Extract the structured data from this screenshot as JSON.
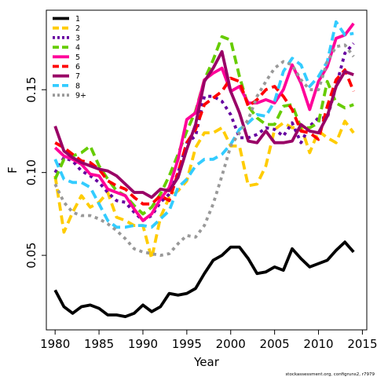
{
  "chart_data": {
    "type": "line",
    "title": "",
    "xlabel": "Year",
    "ylabel": "F",
    "xlim": [
      1979,
      2015.5
    ],
    "ylim": [
      0.005,
      0.198
    ],
    "xticks": [
      1980,
      1985,
      1990,
      1995,
      2000,
      2005,
      2010,
      2015
    ],
    "yticks": [
      0.05,
      0.1,
      0.15
    ],
    "ytick_labels": [
      "0.05",
      "0.10",
      "0.15"
    ],
    "grid": false,
    "legend_position": "top-left",
    "footnote": "stockassessment.org, configruns2, r7979",
    "x": [
      1980,
      1981,
      1982,
      1983,
      1984,
      1985,
      1986,
      1987,
      1988,
      1989,
      1990,
      1991,
      1992,
      1993,
      1994,
      1995,
      1996,
      1997,
      1998,
      1999,
      2000,
      2001,
      2002,
      2003,
      2004,
      2005,
      2006,
      2007,
      2008,
      2009,
      2010,
      2011,
      2012,
      2013,
      2014
    ],
    "series": [
      {
        "name": "1",
        "color": "#000000",
        "dash": "solid",
        "values": [
          0.029,
          0.019,
          0.015,
          0.019,
          0.02,
          0.018,
          0.014,
          0.014,
          0.013,
          0.015,
          0.02,
          0.016,
          0.019,
          0.027,
          0.026,
          0.027,
          0.03,
          0.039,
          0.047,
          0.05,
          0.055,
          0.055,
          0.048,
          0.039,
          0.04,
          0.043,
          0.041,
          0.054,
          0.048,
          0.043,
          0.045,
          0.047,
          0.053,
          0.058,
          0.052
        ]
      },
      {
        "name": "2",
        "color": "#FFCC00",
        "dash": "dashed",
        "values": [
          0.098,
          0.064,
          0.076,
          0.086,
          0.079,
          0.082,
          0.088,
          0.073,
          0.071,
          0.068,
          0.068,
          0.048,
          0.073,
          0.085,
          0.089,
          0.095,
          0.115,
          0.124,
          0.124,
          0.127,
          0.116,
          0.116,
          0.092,
          0.093,
          0.104,
          0.126,
          0.13,
          0.127,
          0.128,
          0.112,
          0.125,
          0.121,
          0.118,
          0.131,
          0.124
        ]
      },
      {
        "name": "3",
        "color": "#6600A0",
        "dash": "dotted",
        "values": [
          0.1,
          0.109,
          0.107,
          0.101,
          0.098,
          0.094,
          0.088,
          0.083,
          0.082,
          0.076,
          0.071,
          0.074,
          0.082,
          0.087,
          0.1,
          0.118,
          0.122,
          0.146,
          0.146,
          0.143,
          0.135,
          0.121,
          0.121,
          0.123,
          0.127,
          0.126,
          0.122,
          0.13,
          0.118,
          0.128,
          0.133,
          0.133,
          0.152,
          0.172,
          0.178
        ]
      },
      {
        "name": "4",
        "color": "#66CC00",
        "dash": "dashed",
        "values": [
          0.096,
          0.108,
          0.11,
          0.112,
          0.116,
          0.104,
          0.096,
          0.089,
          0.086,
          0.08,
          0.075,
          0.079,
          0.087,
          0.098,
          0.111,
          0.125,
          0.137,
          0.156,
          0.168,
          0.182,
          0.18,
          0.158,
          0.14,
          0.133,
          0.129,
          0.129,
          0.14,
          0.141,
          0.127,
          0.127,
          0.13,
          0.155,
          0.142,
          0.139,
          0.141
        ]
      },
      {
        "name": "5",
        "color": "#FF0099",
        "dash": "solid",
        "values": [
          0.115,
          0.11,
          0.108,
          0.105,
          0.099,
          0.098,
          0.09,
          0.088,
          0.086,
          0.078,
          0.071,
          0.075,
          0.084,
          0.091,
          0.108,
          0.132,
          0.136,
          0.156,
          0.16,
          0.163,
          0.149,
          0.152,
          0.142,
          0.142,
          0.144,
          0.142,
          0.15,
          0.165,
          0.154,
          0.138,
          0.155,
          0.164,
          0.181,
          0.183,
          0.19
        ]
      },
      {
        "name": "6",
        "color": "#FF0000",
        "dash": "dashed",
        "values": [
          0.118,
          0.115,
          0.111,
          0.107,
          0.106,
          0.102,
          0.095,
          0.092,
          0.09,
          0.085,
          0.081,
          0.081,
          0.086,
          0.083,
          0.1,
          0.118,
          0.126,
          0.141,
          0.145,
          0.149,
          0.157,
          0.155,
          0.14,
          0.144,
          0.15,
          0.152,
          0.146,
          0.138,
          0.125,
          0.124,
          0.12,
          0.14,
          0.156,
          0.162,
          0.149
        ]
      },
      {
        "name": "7",
        "color": "#990066",
        "dash": "solid",
        "values": [
          0.128,
          0.113,
          0.109,
          0.106,
          0.104,
          0.102,
          0.101,
          0.098,
          0.093,
          0.088,
          0.088,
          0.085,
          0.09,
          0.089,
          0.097,
          0.114,
          0.129,
          0.155,
          0.163,
          0.173,
          0.149,
          0.136,
          0.119,
          0.118,
          0.125,
          0.118,
          0.118,
          0.119,
          0.129,
          0.125,
          0.124,
          0.134,
          0.152,
          0.161,
          0.159
        ]
      },
      {
        "name": "8",
        "color": "#33CCFF",
        "dash": "dashed",
        "values": [
          0.108,
          0.096,
          0.094,
          0.094,
          0.091,
          0.081,
          0.071,
          0.067,
          0.067,
          0.068,
          0.068,
          0.067,
          0.072,
          0.077,
          0.091,
          0.096,
          0.104,
          0.108,
          0.108,
          0.111,
          0.117,
          0.126,
          0.13,
          0.135,
          0.134,
          0.143,
          0.161,
          0.169,
          0.165,
          0.152,
          0.158,
          0.167,
          0.191,
          0.183,
          0.184
        ]
      },
      {
        "name": "9+",
        "color": "#999999",
        "dash": "dotted",
        "values": [
          0.093,
          0.082,
          0.076,
          0.074,
          0.074,
          0.072,
          0.069,
          0.065,
          0.06,
          0.054,
          0.052,
          0.051,
          0.05,
          0.051,
          0.057,
          0.062,
          0.061,
          0.068,
          0.081,
          0.098,
          0.116,
          0.124,
          0.132,
          0.146,
          0.155,
          0.163,
          0.167,
          0.165,
          0.156,
          0.15,
          0.15,
          0.167,
          0.176,
          0.177,
          0.17
        ]
      }
    ]
  }
}
